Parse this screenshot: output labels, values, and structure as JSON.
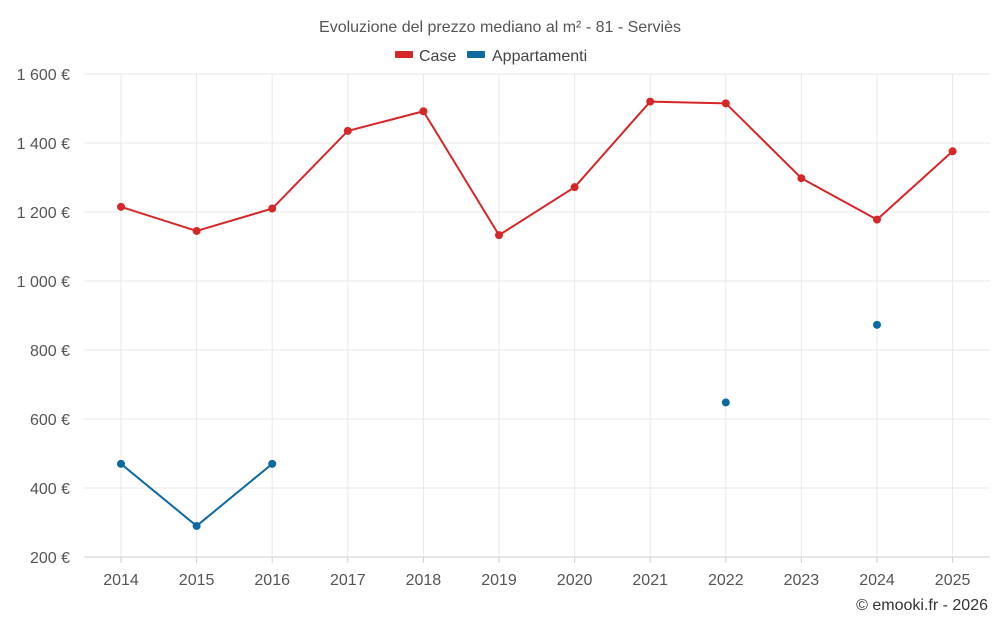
{
  "chart_data": {
    "type": "line",
    "title": "Evoluzione del prezzo mediano al m² - 81 - Serviès",
    "categories": [
      "2014",
      "2015",
      "2016",
      "2017",
      "2018",
      "2019",
      "2020",
      "2021",
      "2022",
      "2023",
      "2024",
      "2025"
    ],
    "series": [
      {
        "name": "Case",
        "color": "#d62728",
        "values": [
          1215,
          1145,
          1210,
          1435,
          1492,
          1133,
          1272,
          1520,
          1515,
          1298,
          1178,
          1376
        ]
      },
      {
        "name": "Appartamenti",
        "color": "#0d6aa0",
        "values": [
          470,
          290,
          470,
          null,
          null,
          null,
          null,
          null,
          648,
          null,
          873,
          null
        ]
      }
    ],
    "yticks": [
      200,
      400,
      600,
      800,
      1000,
      1200,
      1400,
      1600
    ],
    "ytick_labels": [
      "200 €",
      "400 €",
      "600 €",
      "800 €",
      "1 000 €",
      "1 200 €",
      "1 400 €",
      "1 600 €"
    ],
    "ylim": [
      200,
      1600
    ],
    "xlabel": "",
    "ylabel": "",
    "legend": "top-center",
    "grid": true,
    "credit": "© emooki.fr - 2026"
  }
}
